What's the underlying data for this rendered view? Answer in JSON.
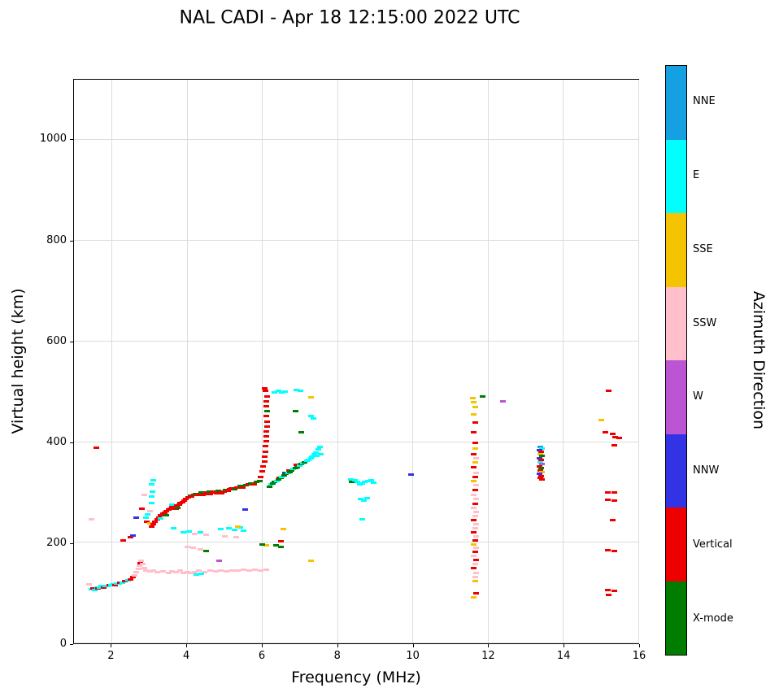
{
  "chart_data": {
    "type": "scatter",
    "title": "NAL CADI - Apr 18 12:15:00 2022 UTC",
    "xlabel": "Frequency (MHz)",
    "ylabel": "Virtual height (km)",
    "xlim": [
      1,
      16
    ],
    "ylim": [
      0,
      1120
    ],
    "xticks": [
      2,
      4,
      6,
      8,
      10,
      12,
      14,
      16
    ],
    "yticks": [
      0,
      200,
      400,
      600,
      800,
      1000
    ],
    "grid": true,
    "marker": "horizontal-dash",
    "palette": {
      "NNE": "#15a0e1",
      "E": "#00ffff",
      "SSE": "#f5c400",
      "SSW": "#ffc0cb",
      "W": "#bb55d3",
      "NNW": "#3333e6",
      "V": "#ee0000",
      "X": "#007d00"
    },
    "colorbar": {
      "label": "Azimuth Direction",
      "segments_top_to_bottom": [
        {
          "label": "NNE",
          "key": "NNE"
        },
        {
          "label": "E",
          "key": "E"
        },
        {
          "label": "SSE",
          "key": "SSE"
        },
        {
          "label": "SSW",
          "key": "SSW"
        },
        {
          "label": "W",
          "key": "W"
        },
        {
          "label": "NNW",
          "key": "NNW"
        },
        {
          "label": "Vertical",
          "key": "V"
        },
        {
          "label": "X-mode",
          "key": "X"
        }
      ]
    },
    "points": [
      [
        1.38,
        118,
        "SSW"
      ],
      [
        1.45,
        108,
        "E"
      ],
      [
        1.5,
        110,
        "V"
      ],
      [
        1.55,
        107,
        "E"
      ],
      [
        1.6,
        112,
        "E"
      ],
      [
        1.62,
        110,
        "V"
      ],
      [
        1.68,
        112,
        "E"
      ],
      [
        1.72,
        114,
        "E"
      ],
      [
        1.78,
        112,
        "V"
      ],
      [
        1.82,
        115,
        "E"
      ],
      [
        1.88,
        114,
        "E"
      ],
      [
        1.92,
        116,
        "V"
      ],
      [
        1.98,
        116,
        "E"
      ],
      [
        2.02,
        118,
        "E"
      ],
      [
        2.08,
        117,
        "V"
      ],
      [
        2.12,
        119,
        "E"
      ],
      [
        2.18,
        120,
        "E"
      ],
      [
        2.22,
        121,
        "V"
      ],
      [
        2.28,
        122,
        "E"
      ],
      [
        2.35,
        124,
        "V"
      ],
      [
        2.42,
        126,
        "E"
      ],
      [
        2.5,
        128,
        "V"
      ],
      [
        2.55,
        132,
        "V"
      ],
      [
        2.6,
        136,
        "SSW"
      ],
      [
        2.65,
        142,
        "SSW"
      ],
      [
        2.7,
        148,
        "SSW"
      ],
      [
        2.72,
        155,
        "SSW"
      ],
      [
        2.75,
        160,
        "V"
      ],
      [
        2.78,
        165,
        "SSW"
      ],
      [
        2.82,
        158,
        "SSW"
      ],
      [
        2.85,
        150,
        "SSW"
      ],
      [
        2.9,
        145,
        "SSW"
      ],
      [
        3.0,
        144,
        "SSW"
      ],
      [
        3.1,
        146,
        "SSW"
      ],
      [
        3.2,
        142,
        "SSW"
      ],
      [
        3.35,
        144,
        "SSW"
      ],
      [
        3.5,
        141,
        "SSW"
      ],
      [
        3.6,
        144,
        "SSW"
      ],
      [
        3.7,
        142,
        "SSW"
      ],
      [
        3.8,
        145,
        "SSW"
      ],
      [
        3.9,
        141,
        "SSW"
      ],
      [
        4.0,
        143,
        "SSW"
      ],
      [
        4.1,
        140,
        "SSW"
      ],
      [
        4.2,
        142,
        "SSW"
      ],
      [
        4.3,
        145,
        "SSW"
      ],
      [
        4.45,
        143,
        "SSW"
      ],
      [
        4.6,
        146,
        "SSW"
      ],
      [
        4.75,
        144,
        "SSW"
      ],
      [
        4.9,
        146,
        "SSW"
      ],
      [
        5.05,
        144,
        "SSW"
      ],
      [
        5.2,
        146,
        "SSW"
      ],
      [
        5.35,
        145,
        "SSW"
      ],
      [
        5.5,
        147,
        "SSW"
      ],
      [
        5.65,
        145,
        "SSW"
      ],
      [
        5.8,
        147,
        "SSW"
      ],
      [
        5.95,
        146,
        "SSW"
      ],
      [
        6.1,
        147,
        "SSW"
      ],
      [
        4.25,
        137,
        "E"
      ],
      [
        4.38,
        139,
        "E"
      ],
      [
        4.85,
        165,
        "W"
      ],
      [
        4.5,
        185,
        "X"
      ],
      [
        4.0,
        192,
        "SSW"
      ],
      [
        4.15,
        190,
        "SSW"
      ],
      [
        4.35,
        188,
        "SSW"
      ],
      [
        3.9,
        221,
        "E"
      ],
      [
        4.05,
        223,
        "E"
      ],
      [
        4.2,
        219,
        "SSW"
      ],
      [
        4.35,
        221,
        "E"
      ],
      [
        4.5,
        217,
        "SSW"
      ],
      [
        4.9,
        228,
        "E"
      ],
      [
        5.1,
        230,
        "E"
      ],
      [
        5.25,
        226,
        "E"
      ],
      [
        5.4,
        231,
        "E"
      ],
      [
        5.5,
        224,
        "E"
      ],
      [
        3.63,
        229,
        "E"
      ],
      [
        5.35,
        232,
        "SSE"
      ],
      [
        6.55,
        228,
        "SSE"
      ],
      [
        7.3,
        165,
        "SSE"
      ],
      [
        6.1,
        196,
        "SSE"
      ],
      [
        6.0,
        197,
        "X"
      ],
      [
        6.35,
        195,
        "X"
      ],
      [
        6.5,
        193,
        "X"
      ],
      [
        6.5,
        204,
        "V"
      ],
      [
        5.0,
        214,
        "SSW"
      ],
      [
        5.3,
        212,
        "SSW"
      ],
      [
        1.45,
        248,
        "SSW"
      ],
      [
        1.58,
        390,
        "V"
      ],
      [
        2.3,
        205,
        "V"
      ],
      [
        2.5,
        212,
        "V"
      ],
      [
        2.56,
        215,
        "NNW"
      ],
      [
        2.65,
        250,
        "NNW"
      ],
      [
        2.8,
        268,
        "V"
      ],
      [
        2.85,
        295,
        "SSW"
      ],
      [
        2.9,
        250,
        "E"
      ],
      [
        2.92,
        243,
        "V"
      ],
      [
        2.95,
        257,
        "E"
      ],
      [
        3.0,
        240,
        "SSE"
      ],
      [
        3.0,
        264,
        "SSW"
      ],
      [
        3.05,
        232,
        "V"
      ],
      [
        3.05,
        280,
        "E"
      ],
      [
        3.05,
        292,
        "E"
      ],
      [
        3.08,
        302,
        "E"
      ],
      [
        3.05,
        316,
        "E"
      ],
      [
        3.1,
        325,
        "E"
      ],
      [
        3.1,
        238,
        "V"
      ],
      [
        3.15,
        243,
        "V"
      ],
      [
        3.2,
        247,
        "V"
      ],
      [
        3.25,
        251,
        "V"
      ],
      [
        3.3,
        249,
        "E"
      ],
      [
        3.3,
        255,
        "V"
      ],
      [
        3.35,
        258,
        "V"
      ],
      [
        3.4,
        261,
        "V"
      ],
      [
        3.45,
        256,
        "X"
      ],
      [
        3.45,
        264,
        "V"
      ],
      [
        3.5,
        266,
        "V"
      ],
      [
        3.55,
        268,
        "V"
      ],
      [
        3.6,
        271,
        "V"
      ],
      [
        3.6,
        276,
        "E"
      ],
      [
        3.65,
        272,
        "V"
      ],
      [
        3.7,
        268,
        "V"
      ],
      [
        3.72,
        274,
        "V"
      ],
      [
        3.78,
        277,
        "V"
      ],
      [
        3.75,
        270,
        "X"
      ],
      [
        3.82,
        279,
        "V"
      ],
      [
        3.88,
        281,
        "V"
      ],
      [
        3.92,
        284,
        "V"
      ],
      [
        3.97,
        287,
        "V"
      ],
      [
        4.02,
        291,
        "V"
      ],
      [
        4.08,
        294,
        "X"
      ],
      [
        4.12,
        292,
        "V"
      ],
      [
        4.18,
        296,
        "V"
      ],
      [
        4.22,
        298,
        "X"
      ],
      [
        4.28,
        295,
        "V"
      ],
      [
        4.32,
        297,
        "V"
      ],
      [
        4.38,
        300,
        "X"
      ],
      [
        4.42,
        296,
        "V"
      ],
      [
        4.48,
        298,
        "V"
      ],
      [
        4.52,
        300,
        "V"
      ],
      [
        4.58,
        302,
        "X"
      ],
      [
        4.62,
        298,
        "V"
      ],
      [
        4.68,
        300,
        "V"
      ],
      [
        4.72,
        302,
        "V"
      ],
      [
        4.78,
        299,
        "V"
      ],
      [
        4.82,
        304,
        "X"
      ],
      [
        4.88,
        301,
        "V"
      ],
      [
        4.92,
        299,
        "V"
      ],
      [
        4.98,
        303,
        "V"
      ],
      [
        5.02,
        306,
        "X"
      ],
      [
        5.08,
        304,
        "V"
      ],
      [
        5.12,
        307,
        "V"
      ],
      [
        5.18,
        309,
        "V"
      ],
      [
        5.25,
        307,
        "X"
      ],
      [
        5.32,
        310,
        "V"
      ],
      [
        5.4,
        313,
        "X"
      ],
      [
        5.48,
        311,
        "V"
      ],
      [
        5.55,
        315,
        "X"
      ],
      [
        5.62,
        317,
        "V"
      ],
      [
        5.7,
        319,
        "X"
      ],
      [
        5.78,
        317,
        "V"
      ],
      [
        5.85,
        321,
        "X"
      ],
      [
        5.92,
        323,
        "X"
      ],
      [
        5.53,
        266,
        "NNW"
      ],
      [
        5.95,
        332,
        "V"
      ],
      [
        6.0,
        342,
        "V"
      ],
      [
        6.02,
        352,
        "V"
      ],
      [
        6.05,
        362,
        "V"
      ],
      [
        6.05,
        372,
        "V"
      ],
      [
        6.08,
        382,
        "V"
      ],
      [
        6.08,
        392,
        "V"
      ],
      [
        6.1,
        402,
        "V"
      ],
      [
        6.1,
        412,
        "V"
      ],
      [
        6.1,
        422,
        "V"
      ],
      [
        6.12,
        432,
        "V"
      ],
      [
        6.12,
        442,
        "V"
      ],
      [
        6.1,
        452,
        "V"
      ],
      [
        6.12,
        462,
        "X"
      ],
      [
        6.1,
        472,
        "V"
      ],
      [
        6.1,
        482,
        "V"
      ],
      [
        6.12,
        492,
        "V"
      ],
      [
        6.08,
        502,
        "V"
      ],
      [
        6.05,
        507,
        "V"
      ],
      [
        6.32,
        500,
        "E"
      ],
      [
        6.42,
        502,
        "E"
      ],
      [
        6.52,
        499,
        "E"
      ],
      [
        6.6,
        501,
        "E"
      ],
      [
        6.9,
        505,
        "E"
      ],
      [
        7.0,
        503,
        "E"
      ],
      [
        6.88,
        462,
        "X"
      ],
      [
        7.02,
        420,
        "X"
      ],
      [
        7.3,
        490,
        "SSE"
      ],
      [
        7.3,
        452,
        "E"
      ],
      [
        7.35,
        448,
        "E"
      ],
      [
        6.18,
        312,
        "X"
      ],
      [
        6.22,
        316,
        "E"
      ],
      [
        6.28,
        318,
        "X"
      ],
      [
        6.32,
        321,
        "X"
      ],
      [
        6.38,
        324,
        "E"
      ],
      [
        6.42,
        327,
        "X"
      ],
      [
        6.45,
        330,
        "V"
      ],
      [
        6.48,
        329,
        "X"
      ],
      [
        6.52,
        332,
        "E"
      ],
      [
        6.58,
        334,
        "X"
      ],
      [
        6.6,
        340,
        "NNW"
      ],
      [
        6.62,
        337,
        "X"
      ],
      [
        6.68,
        339,
        "E"
      ],
      [
        6.7,
        344,
        "V"
      ],
      [
        6.72,
        341,
        "X"
      ],
      [
        6.78,
        344,
        "X"
      ],
      [
        6.82,
        347,
        "E"
      ],
      [
        6.88,
        349,
        "X"
      ],
      [
        6.9,
        355,
        "V"
      ],
      [
        6.92,
        351,
        "X"
      ],
      [
        6.98,
        354,
        "E"
      ],
      [
        7.02,
        357,
        "X"
      ],
      [
        7.08,
        359,
        "E"
      ],
      [
        7.12,
        361,
        "X"
      ],
      [
        7.18,
        364,
        "E"
      ],
      [
        7.22,
        366,
        "E"
      ],
      [
        7.28,
        369,
        "E"
      ],
      [
        7.32,
        372,
        "E"
      ],
      [
        7.38,
        376,
        "E"
      ],
      [
        7.42,
        380,
        "E"
      ],
      [
        7.45,
        374,
        "E"
      ],
      [
        7.48,
        386,
        "E"
      ],
      [
        7.52,
        391,
        "E"
      ],
      [
        7.55,
        377,
        "E"
      ],
      [
        8.35,
        326,
        "E"
      ],
      [
        8.38,
        322,
        "X"
      ],
      [
        8.45,
        325,
        "E"
      ],
      [
        8.52,
        322,
        "E"
      ],
      [
        8.58,
        316,
        "E"
      ],
      [
        8.65,
        318,
        "E"
      ],
      [
        8.72,
        321,
        "E"
      ],
      [
        8.8,
        323,
        "E"
      ],
      [
        8.88,
        325,
        "E"
      ],
      [
        8.95,
        320,
        "E"
      ],
      [
        8.6,
        288,
        "E"
      ],
      [
        8.7,
        285,
        "E"
      ],
      [
        8.78,
        290,
        "E"
      ],
      [
        8.65,
        248,
        "E"
      ],
      [
        9.95,
        336,
        "NNW"
      ],
      [
        11.62,
        92,
        "SSE"
      ],
      [
        11.68,
        100,
        "V"
      ],
      [
        11.65,
        125,
        "SSE"
      ],
      [
        11.65,
        133,
        "SSW"
      ],
      [
        11.68,
        141,
        "SSW"
      ],
      [
        11.62,
        150,
        "V"
      ],
      [
        11.65,
        158,
        "SSW"
      ],
      [
        11.68,
        166,
        "V"
      ],
      [
        11.62,
        174,
        "SSW"
      ],
      [
        11.65,
        182,
        "V"
      ],
      [
        11.68,
        190,
        "SSW"
      ],
      [
        11.62,
        198,
        "SSE"
      ],
      [
        11.65,
        206,
        "V"
      ],
      [
        11.68,
        214,
        "SSW"
      ],
      [
        11.62,
        222,
        "V"
      ],
      [
        11.65,
        230,
        "SSW"
      ],
      [
        11.68,
        238,
        "SSW"
      ],
      [
        11.62,
        246,
        "V"
      ],
      [
        11.65,
        254,
        "SSW"
      ],
      [
        11.68,
        262,
        "SSW"
      ],
      [
        11.62,
        270,
        "SSW"
      ],
      [
        11.65,
        278,
        "V"
      ],
      [
        11.68,
        287,
        "SSW"
      ],
      [
        11.62,
        296,
        "SSW"
      ],
      [
        11.65,
        306,
        "V"
      ],
      [
        11.68,
        315,
        "SSW"
      ],
      [
        11.62,
        323,
        "SSE"
      ],
      [
        11.65,
        331,
        "V"
      ],
      [
        11.68,
        340,
        "SSW"
      ],
      [
        11.62,
        350,
        "V"
      ],
      [
        11.65,
        360,
        "SSE"
      ],
      [
        11.68,
        369,
        "SSW"
      ],
      [
        11.62,
        377,
        "V"
      ],
      [
        11.65,
        388,
        "SSE"
      ],
      [
        11.65,
        400,
        "V"
      ],
      [
        11.62,
        420,
        "V"
      ],
      [
        11.65,
        440,
        "V"
      ],
      [
        11.62,
        455,
        "SSE"
      ],
      [
        11.65,
        470,
        "SSE"
      ],
      [
        11.62,
        480,
        "SSE"
      ],
      [
        11.6,
        488,
        "SSE"
      ],
      [
        11.85,
        491,
        "X"
      ],
      [
        12.4,
        482,
        "W"
      ],
      [
        13.38,
        391,
        "NNE"
      ],
      [
        13.42,
        388,
        "E"
      ],
      [
        13.36,
        384,
        "NNW"
      ],
      [
        13.4,
        381,
        "V"
      ],
      [
        13.38,
        377,
        "SSE"
      ],
      [
        13.42,
        373,
        "X"
      ],
      [
        13.36,
        369,
        "NNW"
      ],
      [
        13.4,
        365,
        "V"
      ],
      [
        13.38,
        361,
        "E"
      ],
      [
        13.42,
        357,
        "W"
      ],
      [
        13.36,
        353,
        "V"
      ],
      [
        13.4,
        349,
        "X"
      ],
      [
        13.38,
        345,
        "V"
      ],
      [
        13.42,
        341,
        "SSE"
      ],
      [
        13.36,
        337,
        "NNW"
      ],
      [
        13.4,
        333,
        "V"
      ],
      [
        13.38,
        329,
        "V"
      ],
      [
        13.42,
        326,
        "V"
      ],
      [
        15.2,
        502,
        "V"
      ],
      [
        15.0,
        445,
        "SSE"
      ],
      [
        15.12,
        420,
        "V"
      ],
      [
        15.3,
        417,
        "V"
      ],
      [
        15.38,
        411,
        "V"
      ],
      [
        15.48,
        409,
        "V"
      ],
      [
        15.35,
        395,
        "V"
      ],
      [
        15.18,
        301,
        "V"
      ],
      [
        15.36,
        300,
        "V"
      ],
      [
        15.18,
        286,
        "V"
      ],
      [
        15.36,
        285,
        "V"
      ],
      [
        15.3,
        245,
        "V"
      ],
      [
        15.18,
        186,
        "V"
      ],
      [
        15.36,
        185,
        "V"
      ],
      [
        15.18,
        106,
        "V"
      ],
      [
        15.36,
        105,
        "V"
      ],
      [
        15.2,
        97,
        "V"
      ]
    ]
  }
}
